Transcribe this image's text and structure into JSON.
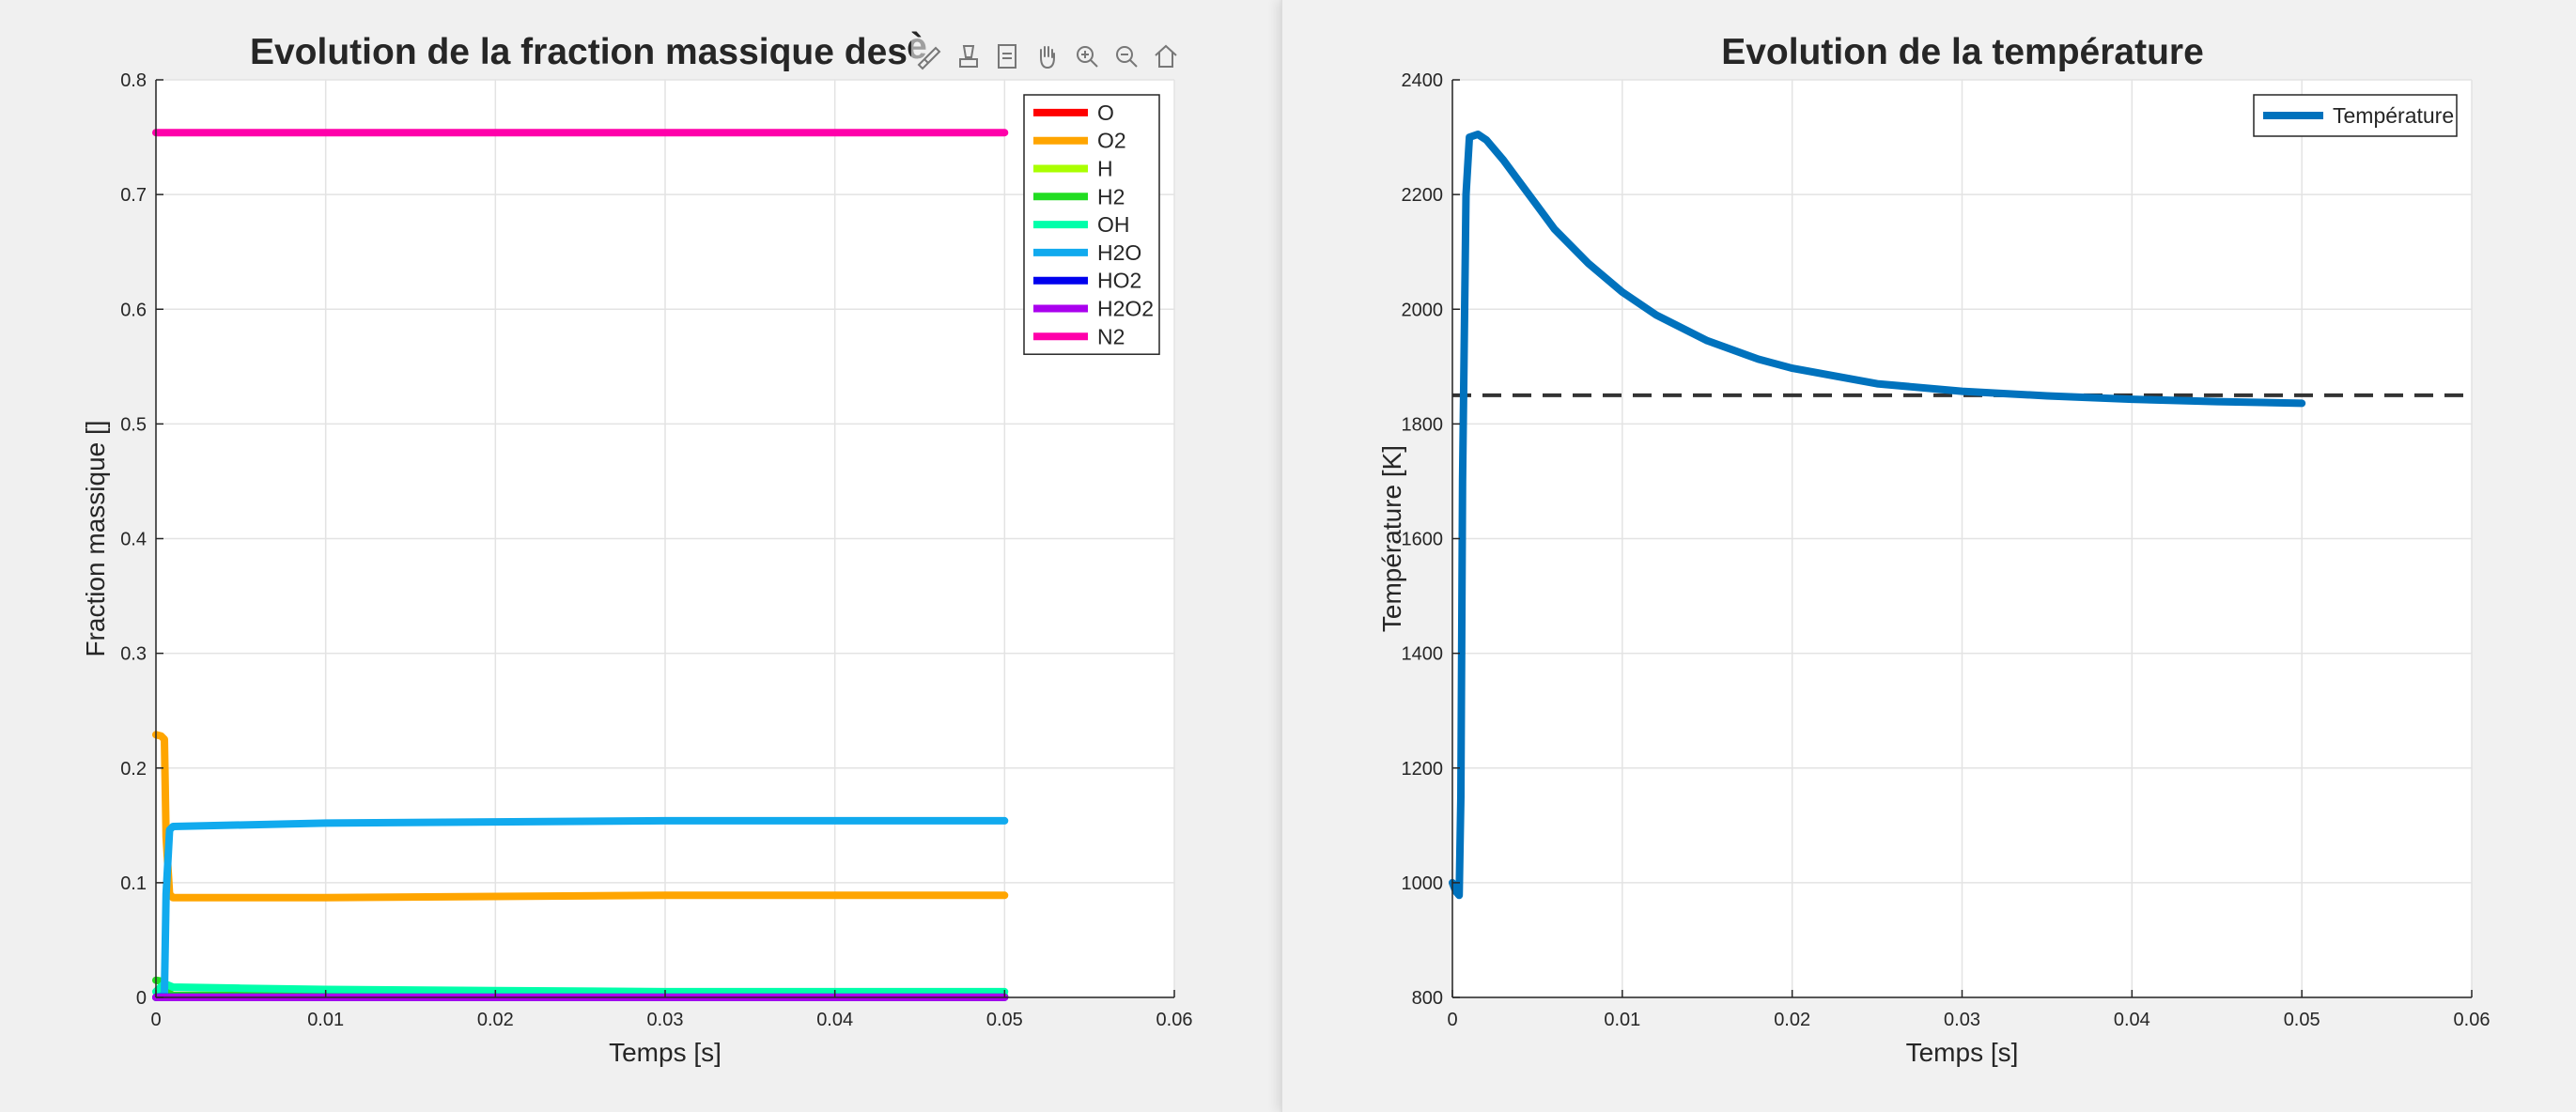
{
  "chart_data": [
    {
      "type": "line",
      "title": "Evolution de la fraction massique des",
      "title_cut_glyph": "è",
      "xlabel": "Temps [s]",
      "ylabel": "Fraction massique []",
      "xlim": [
        0,
        0.06
      ],
      "ylim": [
        0,
        0.8
      ],
      "xticks": [
        0,
        0.01,
        0.02,
        0.03,
        0.04,
        0.05,
        0.06
      ],
      "xtick_labels": [
        "0",
        "0.01",
        "0.02",
        "0.03",
        "0.04",
        "0.05",
        "0.06"
      ],
      "yticks": [
        0,
        0.1,
        0.2,
        0.3,
        0.4,
        0.5,
        0.6,
        0.7,
        0.8
      ],
      "ytick_labels": [
        "0",
        "0.1",
        "0.2",
        "0.3",
        "0.4",
        "0.5",
        "0.6",
        "0.7",
        "0.8"
      ],
      "grid": true,
      "legend_position": "top-right",
      "series": [
        {
          "name": "O",
          "color": "#ff0000",
          "x": [
            0,
            0.0005,
            0.001,
            0.05
          ],
          "y": [
            0,
            0.001,
            0.0005,
            0.0003
          ]
        },
        {
          "name": "O2",
          "color": "#ffa500",
          "x": [
            0,
            0.0003,
            0.0005,
            0.0006,
            0.0008,
            0.001,
            0.01,
            0.02,
            0.03,
            0.04,
            0.05
          ],
          "y": [
            0.229,
            0.228,
            0.225,
            0.14,
            0.09,
            0.087,
            0.087,
            0.088,
            0.089,
            0.089,
            0.089
          ]
        },
        {
          "name": "H",
          "color": "#aaff00",
          "x": [
            0,
            0.0005,
            0.001,
            0.05
          ],
          "y": [
            0,
            0.0015,
            0.0008,
            0.0003
          ]
        },
        {
          "name": "H2",
          "color": "#22dd22",
          "x": [
            0,
            0.0004,
            0.0007,
            0.001,
            0.05
          ],
          "y": [
            0.015,
            0.014,
            0.004,
            0.002,
            0.001
          ]
        },
        {
          "name": "OH",
          "color": "#00ffaa",
          "x": [
            0,
            0.0005,
            0.001,
            0.005,
            0.01,
            0.02,
            0.03,
            0.04,
            0.05
          ],
          "y": [
            0.005,
            0.012,
            0.009,
            0.008,
            0.007,
            0.006,
            0.005,
            0.005,
            0.005
          ]
        },
        {
          "name": "H2O",
          "color": "#11aaee",
          "x": [
            0,
            0.0003,
            0.0005,
            0.0006,
            0.0008,
            0.001,
            0.01,
            0.02,
            0.03,
            0.04,
            0.05
          ],
          "y": [
            0,
            0.001,
            0.003,
            0.09,
            0.146,
            0.149,
            0.152,
            0.153,
            0.154,
            0.154,
            0.154
          ]
        },
        {
          "name": "HO2",
          "color": "#0000ee",
          "x": [
            0,
            0.05
          ],
          "y": [
            0.0002,
            0.0001
          ]
        },
        {
          "name": "H2O2",
          "color": "#aa00ee",
          "x": [
            0,
            0.05
          ],
          "y": [
            0.0001,
            0.0001
          ]
        },
        {
          "name": "N2",
          "color": "#ff00aa",
          "x": [
            0,
            0.05
          ],
          "y": [
            0.754,
            0.754
          ]
        }
      ]
    },
    {
      "type": "line",
      "title": "Evolution de la température",
      "xlabel": "Temps [s]",
      "ylabel": "Température [K]",
      "xlim": [
        0,
        0.06
      ],
      "ylim": [
        800,
        2400
      ],
      "xticks": [
        0,
        0.01,
        0.02,
        0.03,
        0.04,
        0.05,
        0.06
      ],
      "xtick_labels": [
        "0",
        "0.01",
        "0.02",
        "0.03",
        "0.04",
        "0.05",
        "0.06"
      ],
      "yticks": [
        800,
        1000,
        1200,
        1400,
        1600,
        1800,
        2000,
        2200,
        2400
      ],
      "ytick_labels": [
        "800",
        "1000",
        "1200",
        "1400",
        "1600",
        "1800",
        "2000",
        "2200",
        "2400"
      ],
      "grid": true,
      "legend_position": "top-right",
      "reference_line": {
        "y": 1850,
        "color": "#333333"
      },
      "series": [
        {
          "name": "Température",
          "color": "#0072bd",
          "x": [
            0,
            0.0002,
            0.0004,
            0.0005,
            0.0006,
            0.0008,
            0.001,
            0.0015,
            0.002,
            0.003,
            0.004,
            0.005,
            0.006,
            0.008,
            0.01,
            0.012,
            0.015,
            0.018,
            0.02,
            0.025,
            0.03,
            0.035,
            0.04,
            0.045,
            0.05
          ],
          "y": [
            1000,
            985,
            978,
            1150,
            1700,
            2200,
            2300,
            2305,
            2295,
            2260,
            2220,
            2180,
            2140,
            2080,
            2030,
            1990,
            1945,
            1913,
            1897,
            1870,
            1857,
            1849,
            1843,
            1839,
            1836
          ]
        }
      ]
    }
  ],
  "toolbar": {
    "icons": [
      "brush-icon",
      "data-cursor-icon",
      "datatip-icon",
      "pan-icon",
      "zoom-in-icon",
      "zoom-out-icon",
      "home-icon"
    ]
  }
}
